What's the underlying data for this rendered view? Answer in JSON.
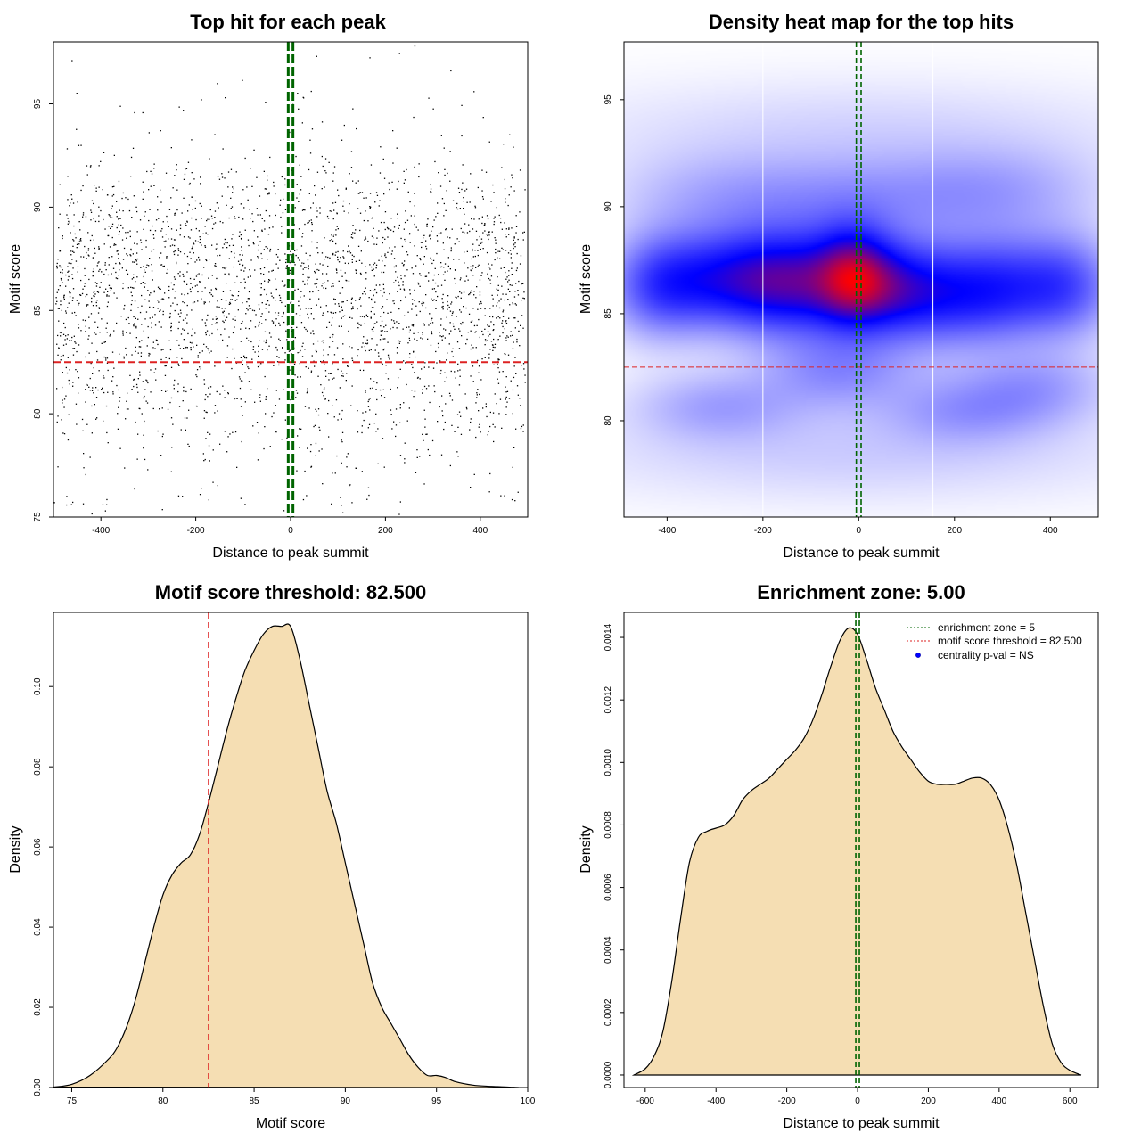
{
  "colors": {
    "threshold": "#dd2222",
    "zone": "#006400",
    "fill": "#f5deb3",
    "heat_low": "#ffffff",
    "heat_mid": "#0000ff",
    "heat_high": "#ff0000",
    "points": "#000000"
  },
  "legend": {
    "zone_label": "enrichment zone = 5",
    "threshold_label": "motif score threshold = 82.500",
    "pval_label": "centrality p-val = NS",
    "placement": "top-right"
  },
  "chart_data": [
    {
      "type": "scatter",
      "title": "Top hit for each peak",
      "xlabel": "Distance to peak summit",
      "ylabel": "Motif score",
      "xlim": [
        -500,
        500
      ],
      "ylim": [
        75,
        98
      ],
      "xticks": [
        "-400",
        "-200",
        "0",
        "200",
        "400"
      ],
      "xtick_values": [
        -400,
        -200,
        0,
        200,
        400
      ],
      "yticks": [
        "75",
        "80",
        "85",
        "90",
        "95"
      ],
      "ytick_values": [
        75,
        80,
        85,
        90,
        95
      ],
      "threshold": 82.5,
      "zone": [
        -5,
        5
      ],
      "n_points": 3000,
      "x_range": [
        -495,
        495
      ],
      "score_density_shape": {
        "x": [
          75,
          77,
          79,
          80,
          81,
          82,
          83,
          84,
          85,
          86,
          87,
          88,
          89,
          90,
          91,
          92,
          93,
          94,
          95,
          96,
          98
        ],
        "y": [
          0.002,
          0.009,
          0.025,
          0.043,
          0.054,
          0.062,
          0.08,
          0.1,
          0.112,
          0.115,
          0.114,
          0.1,
          0.082,
          0.06,
          0.038,
          0.02,
          0.01,
          0.005,
          0.003,
          0.001,
          0.0004
        ]
      },
      "notable_points": [
        {
          "x": -498,
          "y": 75.7
        },
        {
          "x": -472,
          "y": 76.0
        },
        {
          "x": 118,
          "y": 77.9
        },
        {
          "x": -188,
          "y": 95.2
        },
        {
          "x": -138,
          "y": 95.3
        },
        {
          "x": 55,
          "y": 97.3
        },
        {
          "x": 262,
          "y": 97.8
        },
        {
          "x": 338,
          "y": 96.6
        },
        {
          "x": 282,
          "y": 76.6
        }
      ]
    },
    {
      "type": "heatmap",
      "title": "Density heat map for the top hits",
      "xlabel": "Distance to peak summit",
      "ylabel": "Motif score",
      "xlim": [
        -490,
        500
      ],
      "ylim": [
        75.5,
        97.7
      ],
      "xticks": [
        "-400",
        "-200",
        "0",
        "200",
        "400"
      ],
      "xtick_values": [
        -400,
        -200,
        0,
        200,
        400
      ],
      "yticks": [
        "80",
        "85",
        "90",
        "95"
      ],
      "ytick_values": [
        80,
        85,
        90,
        95
      ],
      "threshold": 82.5,
      "zone": [
        -5,
        5
      ],
      "white_gridlines_x": [
        -200,
        155
      ],
      "color_scale": [
        "white",
        "blue",
        "red"
      ],
      "density_blobs": [
        {
          "x": -420,
          "y": 86.3,
          "sx": 70,
          "sy": 1.6,
          "w": 0.8
        },
        {
          "x": -300,
          "y": 86.6,
          "sx": 110,
          "sy": 1.6,
          "w": 0.9
        },
        {
          "x": -200,
          "y": 86.6,
          "sx": 110,
          "sy": 1.6,
          "w": 0.9
        },
        {
          "x": -110,
          "y": 86.4,
          "sx": 90,
          "sy": 1.8,
          "w": 1.05
        },
        {
          "x": -10,
          "y": 86.8,
          "sx": 55,
          "sy": 1.6,
          "w": 1.4
        },
        {
          "x": 70,
          "y": 86.3,
          "sx": 80,
          "sy": 1.6,
          "w": 1.0
        },
        {
          "x": 170,
          "y": 85.8,
          "sx": 120,
          "sy": 1.6,
          "w": 0.9
        },
        {
          "x": 300,
          "y": 86.3,
          "sx": 100,
          "sy": 1.7,
          "w": 0.95
        },
        {
          "x": 440,
          "y": 86.3,
          "sx": 70,
          "sy": 1.6,
          "w": 0.8
        },
        {
          "x": -290,
          "y": 80.7,
          "sx": 120,
          "sy": 1.1,
          "w": 0.45
        },
        {
          "x": -40,
          "y": 82.3,
          "sx": 110,
          "sy": 1.2,
          "w": 0.55
        },
        {
          "x": 220,
          "y": 80.5,
          "sx": 120,
          "sy": 1.1,
          "w": 0.45
        },
        {
          "x": 370,
          "y": 81.6,
          "sx": 110,
          "sy": 1.2,
          "w": 0.45
        },
        {
          "x": 10,
          "y": 90.4,
          "sx": 200,
          "sy": 1.4,
          "w": 0.45
        },
        {
          "x": -300,
          "y": 90.5,
          "sx": 150,
          "sy": 1.4,
          "w": 0.3
        },
        {
          "x": 300,
          "y": 90.8,
          "sx": 150,
          "sy": 1.4,
          "w": 0.35
        },
        {
          "x": 0,
          "y": 93.5,
          "sx": 400,
          "sy": 1.6,
          "w": 0.18
        },
        {
          "x": 0,
          "y": 78.5,
          "sx": 400,
          "sy": 1.5,
          "w": 0.22
        }
      ]
    },
    {
      "type": "area",
      "title": "Motif score threshold: 82.500",
      "xlabel": "Motif score",
      "ylabel": "Density",
      "xlim": [
        74,
        100
      ],
      "ylim": [
        0,
        0.1185
      ],
      "xticks": [
        "75",
        "80",
        "85",
        "90",
        "95",
        "100"
      ],
      "xtick_values": [
        75,
        80,
        85,
        90,
        95,
        100
      ],
      "yticks": [
        "0.00",
        "0.02",
        "0.04",
        "0.06",
        "0.08",
        "0.10"
      ],
      "ytick_values": [
        0,
        0.02,
        0.04,
        0.06,
        0.08,
        0.1
      ],
      "threshold": 82.5,
      "x": [
        74.0,
        75.0,
        76.0,
        77.0,
        77.5,
        78.0,
        78.5,
        79.0,
        79.5,
        80.0,
        80.5,
        81.0,
        81.5,
        82.0,
        82.5,
        83.0,
        83.5,
        84.0,
        84.5,
        85.0,
        85.5,
        86.0,
        86.5,
        87.0,
        87.5,
        88.0,
        88.5,
        89.0,
        89.5,
        90.0,
        90.5,
        91.0,
        91.5,
        92.0,
        92.5,
        93.0,
        93.5,
        94.0,
        94.5,
        95.0,
        95.5,
        96.0,
        97.0,
        98.0,
        99.0,
        99.5
      ],
      "y": [
        0.0001,
        0.0008,
        0.003,
        0.007,
        0.01,
        0.015,
        0.022,
        0.031,
        0.04,
        0.048,
        0.053,
        0.056,
        0.058,
        0.063,
        0.071,
        0.08,
        0.089,
        0.097,
        0.104,
        0.109,
        0.113,
        0.115,
        0.115,
        0.115,
        0.107,
        0.096,
        0.085,
        0.074,
        0.066,
        0.056,
        0.046,
        0.036,
        0.026,
        0.02,
        0.016,
        0.012,
        0.008,
        0.005,
        0.003,
        0.003,
        0.0025,
        0.0015,
        0.0006,
        0.0003,
        0.0001,
        0.0
      ]
    },
    {
      "type": "area",
      "title": "Enrichment zone: 5.00",
      "xlabel": "Distance to peak summit",
      "ylabel": "Density",
      "xlim": [
        -660,
        680
      ],
      "ylim": [
        -4e-05,
        0.00148
      ],
      "xticks": [
        "-600",
        "-400",
        "-200",
        "0",
        "200",
        "400",
        "600"
      ],
      "xtick_values": [
        -600,
        -400,
        -200,
        0,
        200,
        400,
        600
      ],
      "yticks": [
        "0.0000",
        "0.0002",
        "0.0004",
        "0.0006",
        "0.0008",
        "0.0010",
        "0.0012",
        "0.0014"
      ],
      "ytick_values": [
        0,
        0.0002,
        0.0004,
        0.0006,
        0.0008,
        0.001,
        0.0012,
        0.0014
      ],
      "zone": [
        -5,
        5
      ],
      "x": [
        -632,
        -600,
        -575,
        -550,
        -525,
        -500,
        -475,
        -450,
        -425,
        -400,
        -375,
        -350,
        -325,
        -300,
        -275,
        -250,
        -225,
        -200,
        -175,
        -150,
        -125,
        -100,
        -75,
        -50,
        -25,
        0,
        25,
        50,
        75,
        100,
        125,
        150,
        175,
        200,
        225,
        250,
        275,
        300,
        325,
        350,
        375,
        400,
        425,
        450,
        475,
        500,
        525,
        550,
        575,
        600,
        632
      ],
      "y": [
        0.0,
        2e-05,
        6e-05,
        0.00014,
        0.0003,
        0.0005,
        0.00068,
        0.00076,
        0.00078,
        0.00079,
        0.0008,
        0.00083,
        0.00088,
        0.00091,
        0.00093,
        0.00095,
        0.00098,
        0.00101,
        0.00104,
        0.00108,
        0.00114,
        0.00122,
        0.00131,
        0.00139,
        0.00143,
        0.00141,
        0.00133,
        0.00124,
        0.00117,
        0.0011,
        0.00105,
        0.00101,
        0.00097,
        0.00094,
        0.00093,
        0.00093,
        0.00093,
        0.00094,
        0.00095,
        0.00095,
        0.00093,
        0.00088,
        0.00079,
        0.00067,
        0.00052,
        0.00037,
        0.00022,
        0.0001,
        4e-05,
        1.5e-05,
        0.0
      ]
    }
  ]
}
